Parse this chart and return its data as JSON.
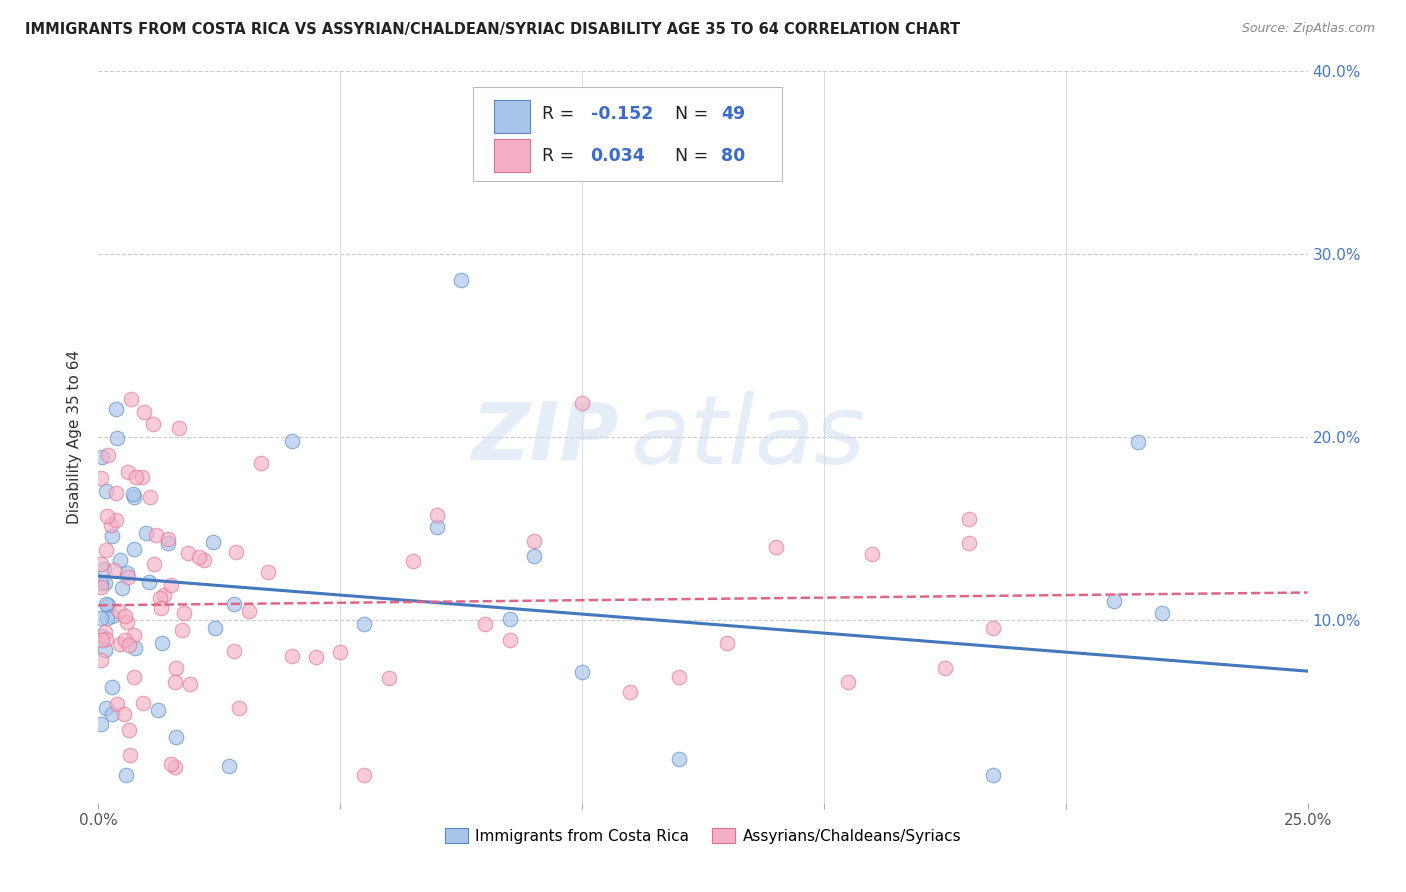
{
  "title": "IMMIGRANTS FROM COSTA RICA VS ASSYRIAN/CHALDEAN/SYRIAC DISABILITY AGE 35 TO 64 CORRELATION CHART",
  "source": "Source: ZipAtlas.com",
  "ylabel": "Disability Age 35 to 64",
  "xlim": [
    0.0,
    0.25
  ],
  "ylim": [
    0.0,
    0.4
  ],
  "xticks": [
    0.0,
    0.05,
    0.1,
    0.15,
    0.2,
    0.25
  ],
  "xticklabels_sparse": [
    "0.0%",
    "",
    "",
    "",
    "",
    "25.0%"
  ],
  "yticks": [
    0.0,
    0.1,
    0.2,
    0.3,
    0.4
  ],
  "ytick_right_labels": [
    "",
    "10.0%",
    "20.0%",
    "30.0%",
    "40.0%"
  ],
  "blue_fill": "#a8c4e8",
  "pink_fill": "#f5b0c5",
  "blue_edge": "#5588cc",
  "pink_edge": "#e07090",
  "blue_line_color": "#4477bb",
  "pink_line_color": "#dd6688",
  "grid_color": "#cccccc",
  "blue_R": -0.152,
  "blue_N": 49,
  "pink_R": 0.034,
  "pink_N": 80,
  "legend_label_blue": "Immigrants from Costa Rica",
  "legend_label_pink": "Assyrians/Chaldeans/Syriacs",
  "watermark_zip": "ZIP",
  "watermark_atlas": "atlas",
  "blue_trend_y0": 0.124,
  "blue_trend_y1": 0.072,
  "pink_trend_y0": 0.108,
  "pink_trend_y1": 0.115,
  "right_axis_color": "#4477cc",
  "title_color": "#222222",
  "source_color": "#888888",
  "ylabel_color": "#333333"
}
